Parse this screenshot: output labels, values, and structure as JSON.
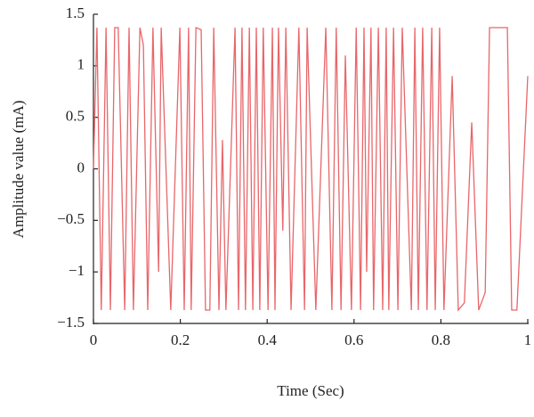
{
  "chart_data": {
    "type": "line",
    "xlabel": "Time (Sec)",
    "ylabel": "Amplitude value (mA)",
    "x": [
      0,
      0.008,
      0.018,
      0.029,
      0.039,
      0.049,
      0.057,
      0.072,
      0.082,
      0.092,
      0.107,
      0.115,
      0.125,
      0.137,
      0.15,
      0.156,
      0.178,
      0.199,
      0.209,
      0.219,
      0.225,
      0.236,
      0.248,
      0.258,
      0.268,
      0.277,
      0.289,
      0.297,
      0.305,
      0.326,
      0.334,
      0.342,
      0.35,
      0.359,
      0.367,
      0.375,
      0.383,
      0.391,
      0.402,
      0.412,
      0.418,
      0.426,
      0.436,
      0.443,
      0.455,
      0.473,
      0.486,
      0.492,
      0.512,
      0.535,
      0.549,
      0.559,
      0.57,
      0.58,
      0.594,
      0.605,
      0.615,
      0.623,
      0.629,
      0.639,
      0.645,
      0.656,
      0.666,
      0.674,
      0.68,
      0.691,
      0.701,
      0.711,
      0.732,
      0.74,
      0.748,
      0.758,
      0.768,
      0.779,
      0.787,
      0.797,
      0.807,
      0.826,
      0.84,
      0.854,
      0.871,
      0.887,
      0.902,
      0.912,
      0.953,
      0.963,
      0.975,
      1.0
    ],
    "series": [
      {
        "name": "Amplitude",
        "color": "#e8666a",
        "values": [
          0,
          1.37,
          -1.37,
          1.37,
          -1.37,
          1.37,
          1.37,
          -1.37,
          1.37,
          -1.37,
          1.37,
          1.2,
          -1.37,
          1.37,
          -1.0,
          1.37,
          -1.37,
          1.37,
          -1.37,
          1.37,
          -1.37,
          1.37,
          1.35,
          -1.37,
          -1.37,
          1.37,
          -1.37,
          0.28,
          -1.37,
          1.37,
          -1.37,
          1.37,
          -1.37,
          1.37,
          -1.37,
          1.37,
          -1.37,
          1.37,
          -1.37,
          1.37,
          -1.37,
          1.37,
          -0.6,
          1.37,
          -1.37,
          1.37,
          -1.37,
          1.37,
          -1.37,
          1.37,
          -1.37,
          1.37,
          -1.37,
          1.1,
          -1.37,
          1.37,
          -1.37,
          1.37,
          -1.0,
          1.37,
          -1.37,
          1.37,
          -1.37,
          1.37,
          -1.37,
          1.37,
          -1.37,
          1.37,
          -1.37,
          1.37,
          -1.37,
          1.37,
          -1.37,
          1.37,
          -1.37,
          1.37,
          -1.37,
          0.9,
          -1.37,
          -1.3,
          0.45,
          -1.37,
          -1.2,
          1.37,
          1.37,
          -1.37,
          -1.37,
          0.9
        ]
      }
    ],
    "xlim": [
      0,
      1
    ],
    "xticks": [
      0,
      0.2,
      0.4,
      0.6,
      0.8,
      1
    ],
    "ylim": [
      -1.5,
      1.5
    ],
    "yticks": [
      {
        "value": -1.5,
        "label": "−1.5"
      },
      {
        "value": -1,
        "label": "−1"
      },
      {
        "value": -0.5,
        "label": "−0.5"
      },
      0,
      0.5,
      1,
      1.5
    ]
  }
}
